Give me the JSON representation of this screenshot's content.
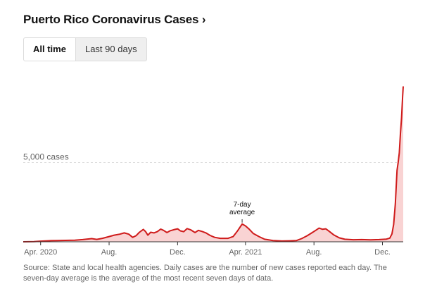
{
  "header": {
    "title": "Puerto Rico Coronavirus Cases",
    "chevron": "›"
  },
  "tabs": [
    {
      "label": "All time",
      "active": true
    },
    {
      "label": "Last 90 days",
      "active": false
    }
  ],
  "colors": {
    "line": "#cf1b1b",
    "fill": "#f9d3d3",
    "axis": "#333333",
    "gridline": "#dddddd",
    "muted": "#666666"
  },
  "chart_data": {
    "type": "area",
    "ylabel": "",
    "gridlines": [
      {
        "value": 5000,
        "label": "5,000 cases"
      }
    ],
    "ylim": [
      0,
      10000
    ],
    "xlim": [
      "2020-03-01",
      "2022-01-07"
    ],
    "x_ticks": [
      {
        "date": "2020-04-01",
        "label": "Apr. 2020"
      },
      {
        "date": "2020-08-01",
        "label": "Aug."
      },
      {
        "date": "2020-12-01",
        "label": "Dec."
      },
      {
        "date": "2021-04-01",
        "label": "Apr. 2021"
      },
      {
        "date": "2021-08-01",
        "label": "Aug."
      },
      {
        "date": "2021-12-01",
        "label": "Dec."
      }
    ],
    "annotation": {
      "lines": [
        "7-day",
        "average"
      ],
      "date": "2021-03-26",
      "value": 1120
    },
    "series": [
      {
        "points": [
          [
            "2020-03-01",
            0
          ],
          [
            "2020-03-20",
            10
          ],
          [
            "2020-04-01",
            40
          ],
          [
            "2020-04-20",
            70
          ],
          [
            "2020-05-01",
            80
          ],
          [
            "2020-05-15",
            90
          ],
          [
            "2020-06-01",
            100
          ],
          [
            "2020-06-15",
            140
          ],
          [
            "2020-07-01",
            200
          ],
          [
            "2020-07-10",
            150
          ],
          [
            "2020-07-20",
            220
          ],
          [
            "2020-08-01",
            330
          ],
          [
            "2020-08-10",
            420
          ],
          [
            "2020-08-20",
            480
          ],
          [
            "2020-08-28",
            560
          ],
          [
            "2020-09-05",
            480
          ],
          [
            "2020-09-12",
            280
          ],
          [
            "2020-09-18",
            380
          ],
          [
            "2020-09-24",
            600
          ],
          [
            "2020-10-01",
            780
          ],
          [
            "2020-10-05",
            640
          ],
          [
            "2020-10-09",
            420
          ],
          [
            "2020-10-14",
            600
          ],
          [
            "2020-10-20",
            560
          ],
          [
            "2020-10-26",
            640
          ],
          [
            "2020-11-01",
            800
          ],
          [
            "2020-11-06",
            720
          ],
          [
            "2020-11-12",
            580
          ],
          [
            "2020-11-18",
            700
          ],
          [
            "2020-11-24",
            760
          ],
          [
            "2020-12-01",
            820
          ],
          [
            "2020-12-06",
            690
          ],
          [
            "2020-12-12",
            640
          ],
          [
            "2020-12-18",
            830
          ],
          [
            "2020-12-24",
            760
          ],
          [
            "2021-01-01",
            580
          ],
          [
            "2021-01-07",
            720
          ],
          [
            "2021-01-14",
            650
          ],
          [
            "2021-01-21",
            550
          ],
          [
            "2021-01-28",
            400
          ],
          [
            "2021-02-05",
            280
          ],
          [
            "2021-02-15",
            220
          ],
          [
            "2021-03-01",
            220
          ],
          [
            "2021-03-10",
            330
          ],
          [
            "2021-03-18",
            700
          ],
          [
            "2021-03-26",
            1120
          ],
          [
            "2021-04-01",
            1000
          ],
          [
            "2021-04-08",
            780
          ],
          [
            "2021-04-15",
            520
          ],
          [
            "2021-04-25",
            330
          ],
          [
            "2021-05-05",
            160
          ],
          [
            "2021-05-20",
            80
          ],
          [
            "2021-06-05",
            50
          ],
          [
            "2021-06-20",
            60
          ],
          [
            "2021-07-01",
            80
          ],
          [
            "2021-07-10",
            200
          ],
          [
            "2021-07-20",
            380
          ],
          [
            "2021-07-28",
            560
          ],
          [
            "2021-08-04",
            720
          ],
          [
            "2021-08-10",
            860
          ],
          [
            "2021-08-16",
            790
          ],
          [
            "2021-08-22",
            820
          ],
          [
            "2021-08-28",
            660
          ],
          [
            "2021-09-05",
            440
          ],
          [
            "2021-09-15",
            250
          ],
          [
            "2021-09-25",
            160
          ],
          [
            "2021-10-10",
            130
          ],
          [
            "2021-10-25",
            140
          ],
          [
            "2021-11-10",
            120
          ],
          [
            "2021-11-25",
            140
          ],
          [
            "2021-12-08",
            170
          ],
          [
            "2021-12-14",
            230
          ],
          [
            "2021-12-18",
            500
          ],
          [
            "2021-12-21",
            1100
          ],
          [
            "2021-12-24",
            2400
          ],
          [
            "2021-12-27",
            4500
          ],
          [
            "2021-12-29",
            5000
          ],
          [
            "2021-12-31",
            5600
          ],
          [
            "2022-01-02",
            6800
          ],
          [
            "2022-01-04",
            7800
          ],
          [
            "2022-01-06",
            9200
          ],
          [
            "2022-01-07",
            9800
          ]
        ]
      }
    ]
  },
  "source_note": "Source: State and local health agencies. Daily cases are the number of new cases reported each day. The seven-day average is the average of the most recent seven days of data."
}
